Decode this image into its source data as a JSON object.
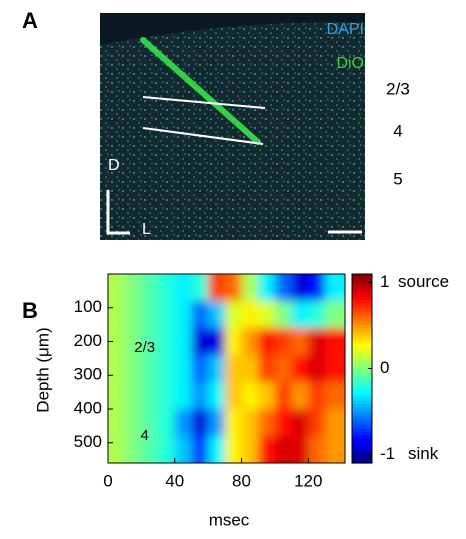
{
  "panel_a": {
    "label": "A",
    "stains": [
      "DAPI",
      "DiO"
    ],
    "layers": [
      "2/3",
      "4",
      "5"
    ],
    "orientation": [
      "D",
      "L"
    ]
  },
  "chart_data": {
    "type": "heatmap",
    "panel_label": "B",
    "xlabel": "msec",
    "ylabel": "Depth (μm)",
    "x": [
      5,
      15,
      25,
      35,
      45,
      55,
      65,
      75,
      85,
      95,
      105,
      115,
      125,
      135
    ],
    "y": [
      40,
      120,
      200,
      280,
      360,
      440,
      520
    ],
    "z": [
      [
        0.1,
        0,
        -0.1,
        -0.2,
        -0.3,
        -0.2,
        0.7,
        0.6,
        0.1,
        -0.3,
        -0.6,
        -0.9,
        -0.8,
        -0.3
      ],
      [
        0.1,
        0,
        -0.1,
        -0.2,
        -0.3,
        -0.6,
        -0.4,
        0.2,
        0.3,
        0.2,
        0,
        -0.3,
        -0.2,
        0
      ],
      [
        0.1,
        0,
        -0.1,
        -0.2,
        -0.3,
        -0.9,
        -0.9,
        0.3,
        0.5,
        0.8,
        0.7,
        0.6,
        0.9,
        0.8
      ],
      [
        0.1,
        0,
        -0.1,
        -0.2,
        -0.3,
        -0.6,
        -0.4,
        0.4,
        0.4,
        0.7,
        0.6,
        0.8,
        0.9,
        0.8
      ],
      [
        0.1,
        0,
        -0.1,
        -0.2,
        -0.3,
        -0.5,
        -0.3,
        0.4,
        0.3,
        0.4,
        0.7,
        0.5,
        0.7,
        0.6
      ],
      [
        0.1,
        0,
        -0.1,
        -0.2,
        -0.5,
        -0.9,
        -0.5,
        0.3,
        0.4,
        0.6,
        0.8,
        0.9,
        0.7,
        0.5
      ],
      [
        0.1,
        0,
        -0.1,
        -0.2,
        -0.4,
        -0.7,
        -0.3,
        0.3,
        0.4,
        0.8,
        0.9,
        0.9,
        0.6,
        0.5
      ]
    ],
    "xlim": [
      0,
      142
    ],
    "xticks": [
      0,
      40,
      80,
      120
    ],
    "ylim": [
      0,
      560
    ],
    "yticks": [
      100,
      200,
      300,
      400,
      500
    ],
    "annotations": [
      {
        "text": "2/3",
        "x": 22,
        "y": 220
      },
      {
        "text": "4",
        "x": 22,
        "y": 480
      }
    ],
    "colorbar": {
      "lim": [
        -1.1,
        1.1
      ],
      "ticks": [
        1,
        0,
        -1
      ],
      "top_label": "source",
      "bottom_label": "sink"
    }
  }
}
